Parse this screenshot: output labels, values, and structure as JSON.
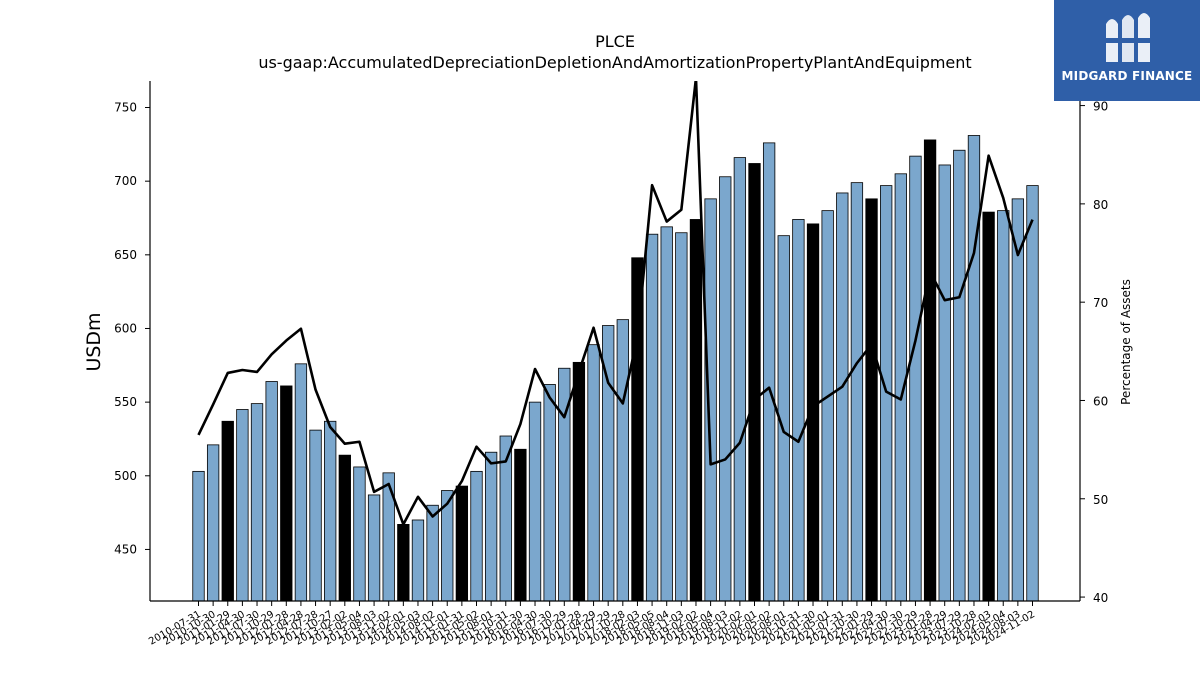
{
  "logo": {
    "brand": "MIDGARD FINANCE",
    "color": "#2f5fa8"
  },
  "chart_data": {
    "type": "bar",
    "title": "PLCE",
    "subtitle": "us-gaap:AccumulatedDepreciationDepletionAndAmortizationPropertyPlantAndEquipment",
    "ylabel": "USDm",
    "ylabel_right": "Percentage of Assets",
    "ylim": [
      415,
      768
    ],
    "ylim_right": [
      39.6,
      92.5
    ],
    "yticks": [
      450,
      500,
      550,
      600,
      650,
      700,
      750
    ],
    "yticks_right": [
      40,
      50,
      60,
      70,
      80,
      90
    ],
    "colors": {
      "bar": "#7ba7cd",
      "highlight": "#000000",
      "line": "#000000"
    },
    "categories": [
      "2010-07-31",
      "2010-10-30",
      "2011-01-29",
      "2011-04-30",
      "2011-07-30",
      "2011-10-29",
      "2012-01-28",
      "2012-04-28",
      "2012-07-28",
      "2012-10-27",
      "2013-02-02",
      "2013-05-04",
      "2013-08-03",
      "2013-11-02",
      "2014-02-01",
      "2014-05-03",
      "2014-08-02",
      "2014-11-01",
      "2015-01-31",
      "2015-05-02",
      "2015-08-01",
      "2015-10-31",
      "2016-01-30",
      "2016-04-30",
      "2016-07-30",
      "2016-10-29",
      "2017-01-28",
      "2017-04-29",
      "2017-07-29",
      "2017-10-28",
      "2018-02-03",
      "2018-05-05",
      "2018-08-04",
      "2018-11-03",
      "2019-02-02",
      "2019-05-04",
      "2019-08-03",
      "2019-11-02",
      "2020-02-01",
      "2020-05-02",
      "2020-08-01",
      "2020-10-31",
      "2021-01-30",
      "2021-05-01",
      "2021-07-31",
      "2021-10-30",
      "2022-01-29",
      "2022-04-30",
      "2022-07-30",
      "2022-10-29",
      "2023-01-28",
      "2023-04-29",
      "2023-07-29",
      "2023-10-28",
      "2024-02-03",
      "2024-05-04",
      "2024-08-03",
      "2024-11-02"
    ],
    "tick_labels": [
      "2010-07-31",
      "2010-10-30",
      "2011-01-29",
      "2011-04-30",
      "2011-07-30",
      "2011-10-29",
      "2012-01-28",
      "2012-04-28",
      "2012-07-28",
      "2012-10-27",
      "2013-02-02",
      "2013-05-04",
      "2013-08-03",
      "2013-11-02",
      "2014-02-01",
      "2014-05-03",
      "2014-08-02",
      "2014-11-01",
      "2015-01-31",
      "2015-05-02",
      "2015-08-01",
      "2015-10-31",
      "2016-01-30",
      "2016-04-30",
      "2016-07-30",
      "2016-10-29",
      "2017-01-28",
      "2017-04-29",
      "2017-07-29",
      "2017-10-28",
      "2018-02-03",
      "2018-05-05",
      "2018-08-04",
      "2018-11-03",
      "2019-02-02",
      "2019-05-04",
      "2019-08-03",
      "2019-11-02",
      "2020-02-01",
      "2020-05-02",
      "2020-08-01",
      "2020-10-31",
      "2021-01-30",
      "2021-05-01",
      "2021-07-31",
      "2021-10-30",
      "2022-01-29",
      "2022-04-30",
      "2022-07-30",
      "2022-10-29",
      "2023-01-28",
      "2023-04-29",
      "2023-07-29",
      "2023-10-28",
      "2024-02-03",
      "2024-05-04",
      "2024-08-03",
      "2024-11-02"
    ],
    "values": [
      503,
      521,
      537,
      545,
      549,
      564,
      561,
      576,
      531,
      537,
      514,
      506,
      487,
      502,
      467,
      470,
      480,
      490,
      493,
      503,
      516,
      527,
      518,
      550,
      562,
      573,
      577,
      589,
      602,
      606,
      648,
      664,
      669,
      665,
      674,
      688,
      703,
      716,
      712,
      726,
      663,
      674,
      671,
      680,
      692,
      699,
      688,
      697,
      705,
      717,
      728,
      711,
      721,
      731,
      679,
      680,
      688,
      697
    ],
    "highlight": [
      false,
      false,
      true,
      false,
      false,
      false,
      true,
      false,
      false,
      false,
      true,
      false,
      false,
      false,
      true,
      false,
      false,
      false,
      true,
      false,
      false,
      false,
      true,
      false,
      false,
      false,
      true,
      false,
      false,
      false,
      true,
      false,
      false,
      false,
      true,
      false,
      false,
      false,
      true,
      false,
      false,
      false,
      true,
      false,
      false,
      false,
      true,
      false,
      false,
      false,
      true,
      false,
      false,
      false,
      true,
      false,
      false,
      false
    ],
    "series": [
      {
        "name": "Percentage of Assets",
        "axis": "right",
        "values": [
          56.5,
          59.6,
          62.8,
          63.1,
          62.9,
          64.7,
          66.1,
          67.3,
          61.1,
          57.3,
          55.6,
          55.8,
          50.7,
          51.5,
          47.4,
          50.2,
          48.2,
          49.5,
          51.8,
          55.3,
          53.6,
          53.8,
          57.6,
          63.2,
          60.3,
          58.3,
          62.9,
          67.4,
          61.8,
          59.7,
          66.4,
          81.9,
          78.2,
          79.4,
          92.8,
          53.5,
          54.0,
          55.7,
          60.1,
          61.3,
          56.8,
          55.8,
          59.4,
          60.4,
          61.4,
          63.8,
          65.7,
          60.9,
          60.1,
          66.1,
          73.1,
          70.2,
          70.5,
          75.0,
          84.9,
          80.6,
          74.8,
          78.4
        ]
      }
    ]
  }
}
